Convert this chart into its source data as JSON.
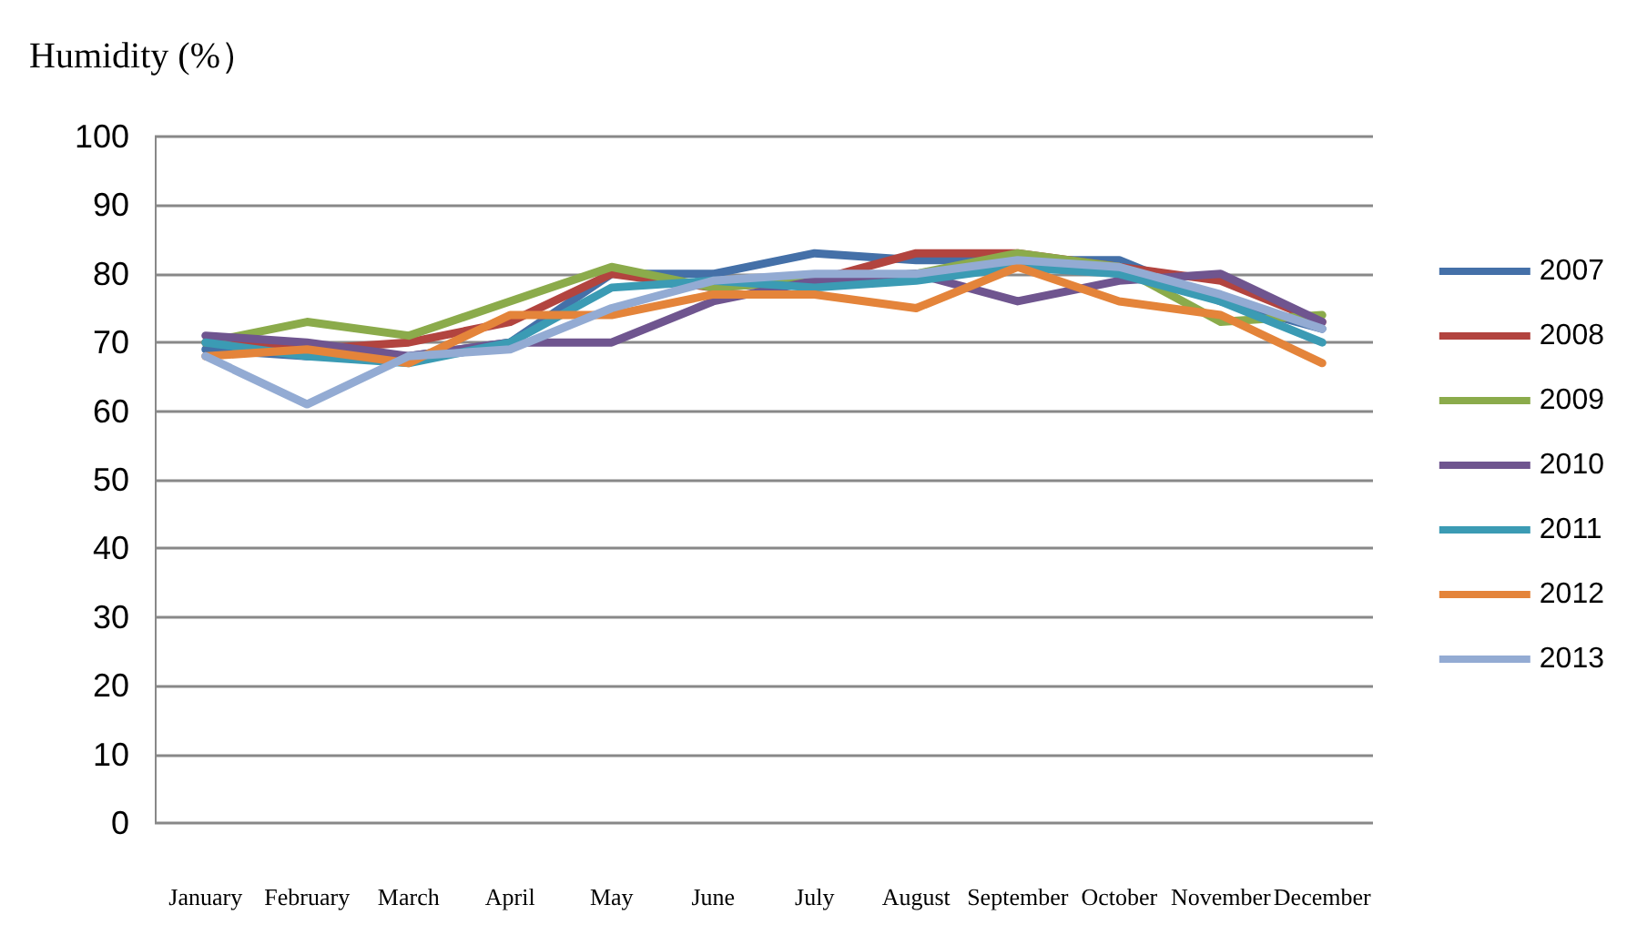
{
  "chart_data": {
    "type": "line",
    "ylabel": "Humidity (%）",
    "categories": [
      "January",
      "February",
      "March",
      "April",
      "May",
      "June",
      "July",
      "August",
      "September",
      "October",
      "November",
      "December"
    ],
    "series": [
      {
        "name": "2007",
        "color": "#4470a8",
        "values": [
          69,
          68,
          68,
          70,
          80,
          80,
          83,
          82,
          82,
          82,
          76,
          72
        ]
      },
      {
        "name": "2008",
        "color": "#b2443f",
        "values": [
          70,
          69,
          70,
          73,
          80,
          78,
          79,
          83,
          83,
          81,
          79,
          73
        ]
      },
      {
        "name": "2009",
        "color": "#8bab4b",
        "values": [
          70,
          73,
          71,
          76,
          81,
          78,
          79,
          80,
          83,
          81,
          73,
          74
        ]
      },
      {
        "name": "2010",
        "color": "#6f558f",
        "values": [
          71,
          70,
          68,
          70,
          70,
          76,
          79,
          80,
          76,
          79,
          80,
          73
        ]
      },
      {
        "name": "2011",
        "color": "#3b9bb4",
        "values": [
          70,
          68,
          67,
          70,
          78,
          79,
          78,
          79,
          81,
          80,
          76,
          70
        ]
      },
      {
        "name": "2012",
        "color": "#e4843a",
        "values": [
          68,
          69,
          67,
          74,
          74,
          77,
          77,
          75,
          81,
          76,
          74,
          67
        ]
      },
      {
        "name": "2013",
        "color": "#93abd3",
        "values": [
          68,
          61,
          68,
          69,
          75,
          79,
          80,
          80,
          82,
          81,
          77,
          72
        ]
      }
    ],
    "ylim": [
      0,
      100
    ],
    "yticks": [
      0,
      10,
      20,
      30,
      40,
      50,
      60,
      70,
      80,
      90,
      100
    ],
    "grid": "y",
    "legend": "right",
    "marker": "none",
    "line_style": "solid"
  }
}
